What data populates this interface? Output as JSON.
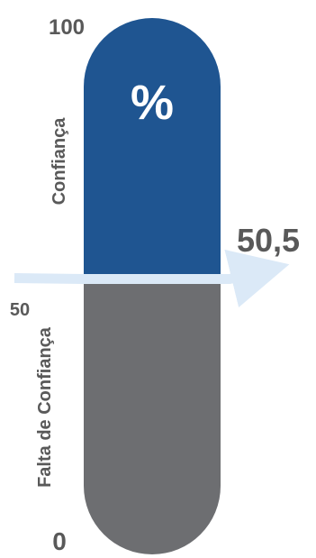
{
  "chart_data": {
    "type": "bar",
    "title": "",
    "ylim": [
      0,
      100
    ],
    "tick_labels": [
      "100",
      "50",
      "0"
    ],
    "tick_values": [
      100,
      50,
      0
    ],
    "unit_label": "%",
    "upper_label": "Confiança",
    "lower_label": "Falta de Confiança",
    "value": 50.5,
    "value_label": "50,5",
    "midpoint": 50
  },
  "colors": {
    "upper": "#1f5591",
    "lower": "#6d6e71",
    "arrow": "#dbe9f7",
    "text": "#595959"
  }
}
